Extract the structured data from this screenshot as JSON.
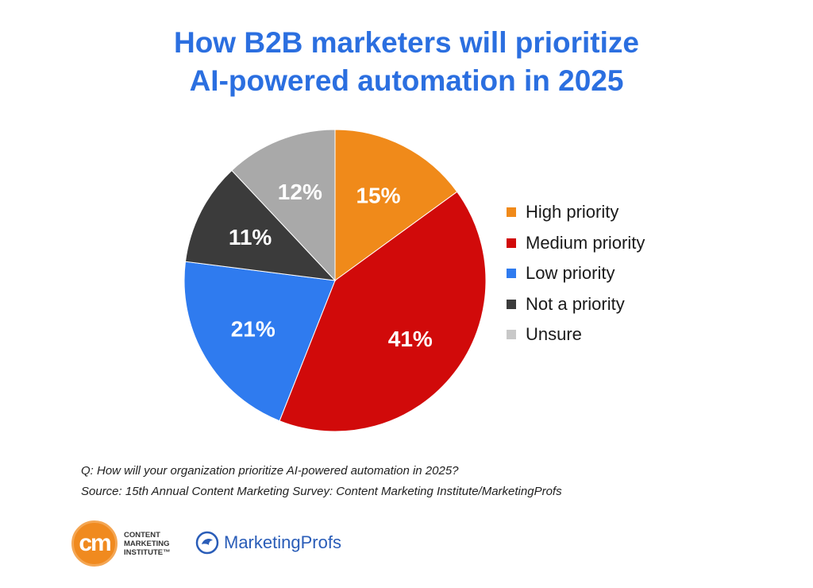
{
  "title_lines": [
    "How B2B marketers will prioritize",
    "AI-powered automation in 2025"
  ],
  "colors": {
    "title": "#2b6fe0",
    "high": "#f08a1a",
    "medium": "#d10a0a",
    "low": "#2f7bef",
    "not": "#3b3b3b",
    "unsure": "#a9a9a9"
  },
  "chart_data": {
    "type": "pie",
    "title": "How B2B marketers will prioritize AI-powered automation in 2025",
    "start_angle_deg": 0,
    "direction": "clockwise",
    "legend_position": "right",
    "slices": [
      {
        "label": "High priority",
        "value": 15,
        "value_label": "15%",
        "color": "#f08a1a"
      },
      {
        "label": "Medium priority",
        "value": 41,
        "value_label": "41%",
        "color": "#d10a0a"
      },
      {
        "label": "Low priority",
        "value": 21,
        "value_label": "21%",
        "color": "#2f7bef"
      },
      {
        "label": "Not a priority",
        "value": 11,
        "value_label": "11%",
        "color": "#3b3b3b"
      },
      {
        "label": "Unsure",
        "value": 12,
        "value_label": "12%",
        "color": "#a9a9a9"
      }
    ]
  },
  "footnote": {
    "question": "Q: How will your organization prioritize AI-powered automation in 2025?",
    "source": "Source: 15th Annual Content Marketing Survey: Content Marketing Institute/MarketingProfs"
  },
  "logos": {
    "cmi_mark": "cm",
    "cmi_lines": [
      "CONTENT",
      "MARKETING",
      "INSTITUTE™"
    ],
    "marketingprofs": "MarketingProfs",
    "marketingprofs_icon": "globe-bird-icon"
  }
}
